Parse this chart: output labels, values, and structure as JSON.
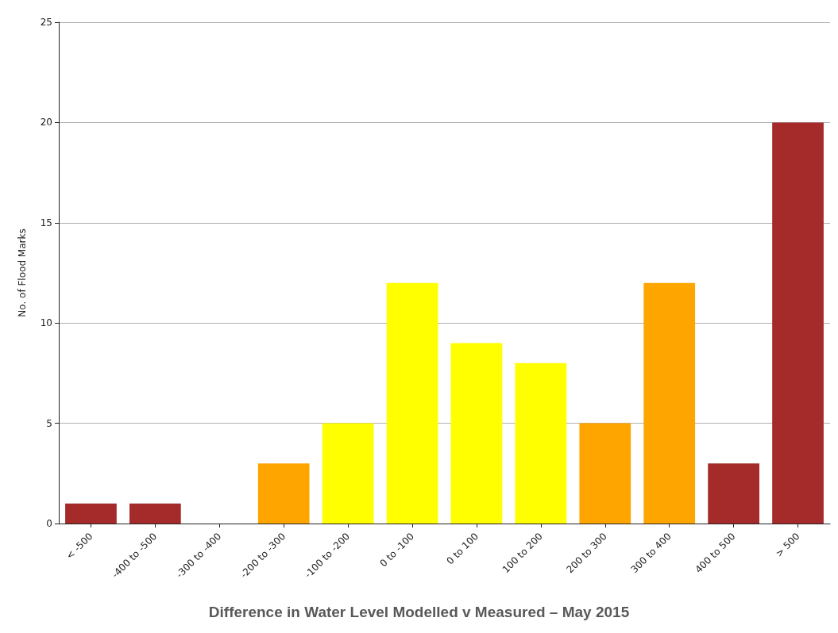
{
  "chart_data": {
    "type": "bar",
    "title": "Difference in Water Level Modelled v Measured – May 2015",
    "ylabel": "No. of Flood Marks",
    "categories": [
      "< -500",
      "-400 to -500",
      "-300 to -400",
      "-200 to -300",
      "-100 to -200",
      "0 to -100",
      "0 to 100",
      "100 to 200",
      "200 to 300",
      "300 to 400",
      "400 to 500",
      "> 500"
    ],
    "values": [
      1,
      1,
      0,
      3,
      5,
      12,
      9,
      8,
      5,
      12,
      3,
      20
    ],
    "colors": [
      "#a52a2a",
      "#a52a2a",
      "#a52a2a",
      "#ffa500",
      "#ffff00",
      "#ffff00",
      "#ffff00",
      "#ffff00",
      "#ffa500",
      "#ffa500",
      "#a52a2a",
      "#a52a2a"
    ],
    "ylim": [
      0,
      25
    ],
    "yticks": [
      0,
      5,
      10,
      15,
      20,
      25
    ],
    "grid": "y"
  }
}
